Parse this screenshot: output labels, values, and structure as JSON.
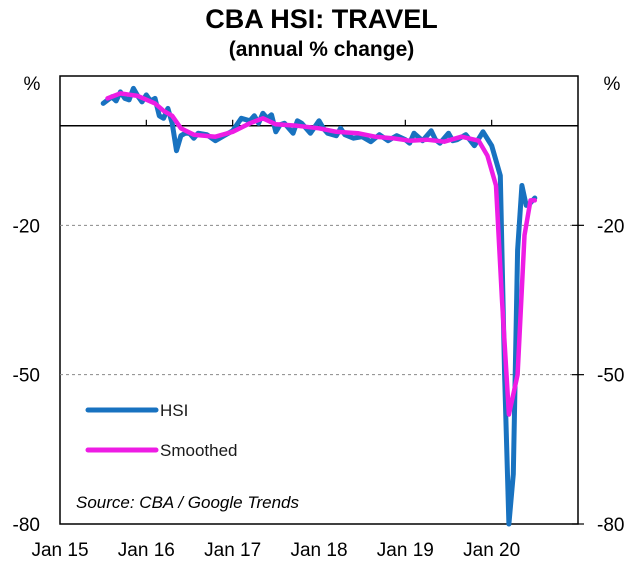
{
  "title": "CBA HSI: TRAVEL",
  "subtitle": "(annual % change)",
  "source": "Source: CBA / Google Trends",
  "colors": {
    "hsi": "#1872c0",
    "smoothed": "#ee1ce4",
    "grid": "#8a8a8a"
  },
  "chart_data": {
    "type": "line",
    "title": "CBA HSI: TRAVEL",
    "subtitle": "(annual % change)",
    "y_unit_left": "%",
    "y_unit_right": "%",
    "ylim": [
      -80,
      10
    ],
    "y_ticks": [
      -80,
      -50,
      -20
    ],
    "y_tick_labels": [
      "-80",
      "-50",
      "-20"
    ],
    "x_tick_labels": [
      "Jan 15",
      "Jan 16",
      "Jan 17",
      "Jan 18",
      "Jan 19",
      "Jan 20"
    ],
    "x_range": [
      2015.0,
      2021.0
    ],
    "grid_lines_at": [
      -20,
      -50
    ],
    "zero_line": true,
    "legend_position": "lower-left",
    "series": [
      {
        "name": "HSI",
        "color": "#1872c0",
        "x": [
          2015.5,
          2015.6,
          2015.65,
          2015.7,
          2015.75,
          2015.8,
          2015.85,
          2015.9,
          2015.95,
          2016.0,
          2016.05,
          2016.1,
          2016.15,
          2016.2,
          2016.25,
          2016.3,
          2016.35,
          2016.4,
          2016.45,
          2016.5,
          2016.55,
          2016.6,
          2016.7,
          2016.8,
          2016.9,
          2017.0,
          2017.1,
          2017.2,
          2017.25,
          2017.3,
          2017.35,
          2017.4,
          2017.45,
          2017.5,
          2017.55,
          2017.6,
          2017.7,
          2017.75,
          2017.8,
          2017.9,
          2018.0,
          2018.05,
          2018.1,
          2018.2,
          2018.25,
          2018.3,
          2018.4,
          2018.5,
          2018.6,
          2018.7,
          2018.8,
          2018.9,
          2019.0,
          2019.05,
          2019.1,
          2019.2,
          2019.3,
          2019.35,
          2019.4,
          2019.5,
          2019.55,
          2019.6,
          2019.7,
          2019.8,
          2019.9,
          2020.0,
          2020.05,
          2020.1,
          2020.15,
          2020.2,
          2020.25,
          2020.3,
          2020.35,
          2020.4,
          2020.45,
          2020.5,
          2020.55,
          2020.6,
          2020.65
        ],
        "values": [
          4.5,
          5.8,
          5.0,
          6.8,
          5.5,
          5.2,
          7.5,
          6.0,
          4.8,
          6.2,
          5.0,
          5.5,
          2.0,
          1.5,
          3.5,
          0.5,
          -5.0,
          -2.0,
          -1.5,
          -1.5,
          -2.5,
          -1.5,
          -1.8,
          -3.0,
          -2.0,
          -1.0,
          1.5,
          1.0,
          2.0,
          0.5,
          2.5,
          1.5,
          2.2,
          -1.2,
          0.2,
          0.5,
          -1.5,
          1.0,
          0.5,
          -1.5,
          1.0,
          -0.5,
          -1.5,
          -2.0,
          -0.5,
          -1.8,
          -2.5,
          -2.2,
          -3.2,
          -1.8,
          -3.0,
          -2.0,
          -2.8,
          -3.5,
          -1.5,
          -3.0,
          -1.0,
          -2.8,
          -3.5,
          -1.5,
          -3.0,
          -2.8,
          -1.8,
          -4.0,
          -1.2,
          -4.0,
          -7.0,
          -10.0,
          -50.0,
          -80.0,
          -70.0,
          -25.0,
          -12.0,
          -16.0,
          -15.5,
          -14.5,
          null,
          null,
          null
        ]
      },
      {
        "name": "Smoothed",
        "color": "#ee1ce4",
        "x": [
          2015.55,
          2015.7,
          2015.9,
          2016.1,
          2016.2,
          2016.3,
          2016.4,
          2016.55,
          2016.8,
          2017.0,
          2017.2,
          2017.35,
          2017.5,
          2017.75,
          2018.0,
          2018.2,
          2018.45,
          2018.65,
          2018.85,
          2019.05,
          2019.25,
          2019.45,
          2019.65,
          2019.85,
          2019.95,
          2020.05,
          2020.12,
          2020.2,
          2020.3,
          2020.38,
          2020.45,
          2020.5
        ],
        "values": [
          5.5,
          6.5,
          6.0,
          4.5,
          3.0,
          2.0,
          -0.5,
          -1.8,
          -2.2,
          -1.2,
          0.5,
          1.5,
          0.3,
          0.0,
          -0.5,
          -1.2,
          -1.5,
          -2.2,
          -2.5,
          -3.0,
          -2.8,
          -3.2,
          -2.2,
          -3.0,
          -6.0,
          -12.0,
          -35.0,
          -58.0,
          -50.0,
          -22.0,
          -15.0,
          -15.0
        ]
      }
    ]
  }
}
